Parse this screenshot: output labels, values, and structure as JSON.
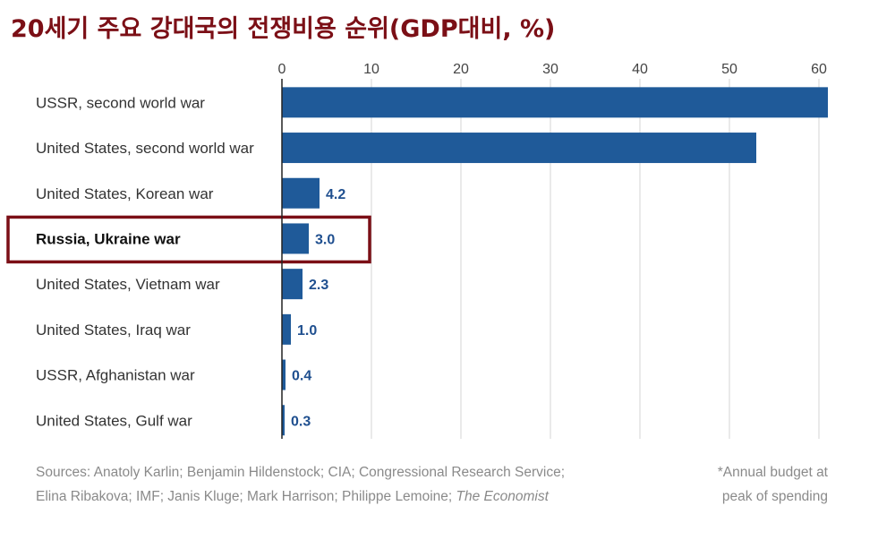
{
  "title": "20세기 주요 강대국의 전쟁비용 순위(GDP대비, %)",
  "chart_data": {
    "type": "bar",
    "orientation": "horizontal",
    "categories": [
      "USSR, second world war",
      "United States, second world war",
      "United States, Korean war",
      "Russia, Ukraine war",
      "United States, Vietnam war",
      "United States, Iraq war",
      "USSR, Afghanistan war",
      "United States, Gulf war"
    ],
    "values": [
      61,
      53,
      4.2,
      3.0,
      2.3,
      1.0,
      0.4,
      0.3
    ],
    "data_labels": [
      "",
      "",
      "4.2",
      "3.0",
      "2.3",
      "1.0",
      "0.4",
      "0.3"
    ],
    "highlight": "Russia, Ukraine war",
    "xlim": [
      0,
      61
    ],
    "xticks": [
      0,
      10,
      20,
      30,
      40,
      50,
      60
    ],
    "xtick_labels": [
      "0",
      "10",
      "20",
      "30",
      "40",
      "50",
      "60"
    ],
    "grid": true,
    "bar_color": "#1f5a99",
    "highlight_color": "#7b0f16"
  },
  "footer": {
    "sources_line1": "Sources: Anatoly Karlin; Benjamin Hildenstock; CIA; Congressional Research Service;",
    "sources_line2": "Elina Ribakova; IMF; Janis Kluge; Mark Harrison; Philippe Lemoine;",
    "sources_publication": "The Economist",
    "note_line1": "*Annual budget at",
    "note_line2": "peak of spending"
  }
}
